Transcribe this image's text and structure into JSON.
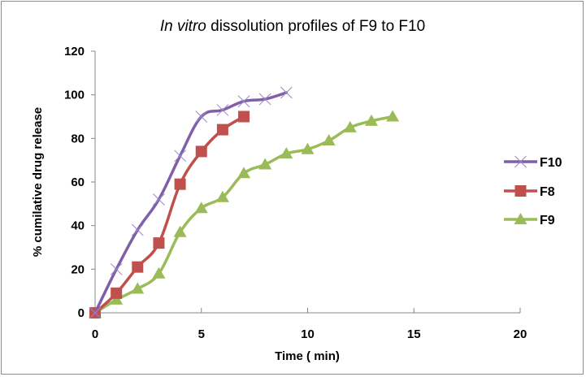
{
  "chart_data": {
    "type": "line",
    "title_italic": "In vitro",
    "title_rest": " dissolution profiles of F9 to F10",
    "xlabel": "Time ( min)",
    "ylabel": "% cumilative drug release",
    "xlim": [
      0,
      20
    ],
    "ylim": [
      0,
      120
    ],
    "xticks": [
      "0",
      "5",
      "10",
      "15",
      "20"
    ],
    "xtick_values": [
      0,
      5,
      10,
      15,
      20
    ],
    "yticks": [
      "0",
      "20",
      "40",
      "60",
      "80",
      "100",
      "120"
    ],
    "ytick_values": [
      0,
      20,
      40,
      60,
      80,
      100,
      120
    ],
    "grid": false,
    "legend_position": "right",
    "series": [
      {
        "name": "F10",
        "color": "#7f5fa8",
        "marker": "x",
        "x": [
          0,
          1,
          2,
          3,
          4,
          5,
          6,
          7,
          8,
          9
        ],
        "y": [
          0,
          20,
          38,
          52,
          72,
          90,
          93,
          97,
          98,
          101
        ]
      },
      {
        "name": "F8",
        "color": "#c0504d",
        "marker": "square",
        "x": [
          0,
          1,
          2,
          3,
          4,
          5,
          6,
          7
        ],
        "y": [
          0,
          9,
          21,
          32,
          59,
          74,
          84,
          90
        ]
      },
      {
        "name": "F9",
        "color": "#9bbb59",
        "marker": "triangle",
        "x": [
          0,
          1,
          2,
          3,
          4,
          5,
          6,
          7,
          8,
          9,
          10,
          11,
          12,
          13,
          14
        ],
        "y": [
          0,
          6,
          11,
          18,
          37,
          48,
          53,
          64,
          68,
          73,
          75,
          79,
          85,
          88,
          90
        ]
      }
    ]
  }
}
